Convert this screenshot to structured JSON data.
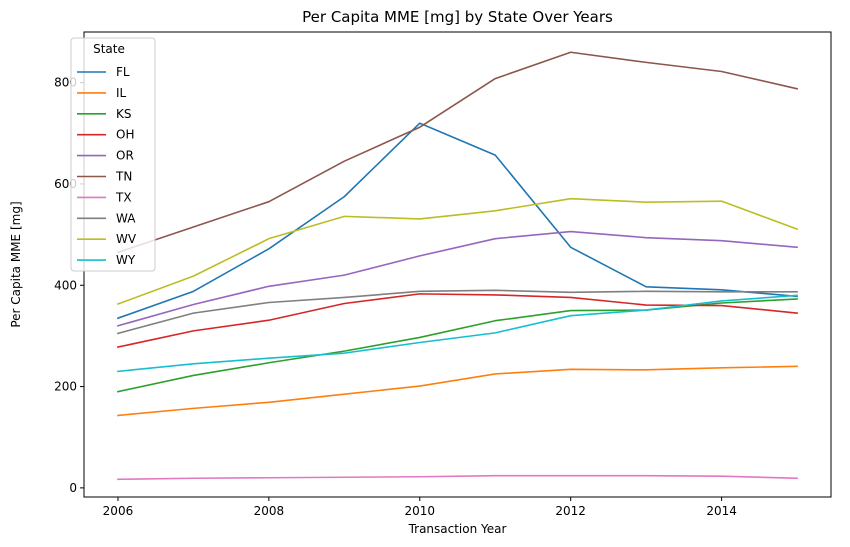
{
  "chart_data": {
    "type": "line",
    "title": "Per Capita MME [mg] by State Over Years",
    "xlabel": "Transaction Year",
    "ylabel": "Per Capita MME [mg]",
    "x": [
      2006,
      2007,
      2008,
      2009,
      2010,
      2011,
      2012,
      2013,
      2014,
      2015
    ],
    "xlim": [
      2005.55,
      2015.45
    ],
    "ylim": [
      -18,
      900
    ],
    "xticks": [
      2006,
      2008,
      2010,
      2012,
      2014
    ],
    "yticks": [
      0,
      200,
      400,
      600,
      800
    ],
    "grid": false,
    "legend": {
      "title": "State",
      "position": "upper-left"
    },
    "series": [
      {
        "name": "FL",
        "color": "#1f77b4",
        "values": [
          335,
          388,
          472,
          575,
          720,
          657,
          475,
          397,
          391,
          378
        ]
      },
      {
        "name": "IL",
        "color": "#ff7f0e",
        "values": [
          143,
          157,
          169,
          185,
          201,
          225,
          234,
          233,
          237,
          240
        ]
      },
      {
        "name": "KS",
        "color": "#2ca02c",
        "values": [
          190,
          222,
          247,
          270,
          297,
          330,
          350,
          351,
          365,
          373
        ]
      },
      {
        "name": "OH",
        "color": "#d62728",
        "values": [
          278,
          310,
          331,
          364,
          383,
          381,
          376,
          361,
          360,
          345
        ]
      },
      {
        "name": "OR",
        "color": "#9467bd",
        "values": [
          320,
          362,
          398,
          420,
          458,
          492,
          506,
          494,
          488,
          475
        ]
      },
      {
        "name": "TN",
        "color": "#8c564b",
        "values": [
          465,
          515,
          565,
          645,
          712,
          808,
          860,
          840,
          822,
          788
        ]
      },
      {
        "name": "TX",
        "color": "#e377c2",
        "values": [
          17,
          19,
          20,
          21,
          22,
          24,
          24,
          24,
          23,
          19
        ]
      },
      {
        "name": "WA",
        "color": "#7f7f7f",
        "values": [
          305,
          345,
          366,
          376,
          388,
          390,
          386,
          388,
          387,
          387
        ]
      },
      {
        "name": "WV",
        "color": "#bcbd22",
        "values": [
          363,
          418,
          492,
          536,
          531,
          547,
          571,
          564,
          566,
          511
        ]
      },
      {
        "name": "WY",
        "color": "#17becf",
        "values": [
          230,
          245,
          256,
          266,
          287,
          306,
          340,
          351,
          369,
          380
        ]
      }
    ]
  }
}
